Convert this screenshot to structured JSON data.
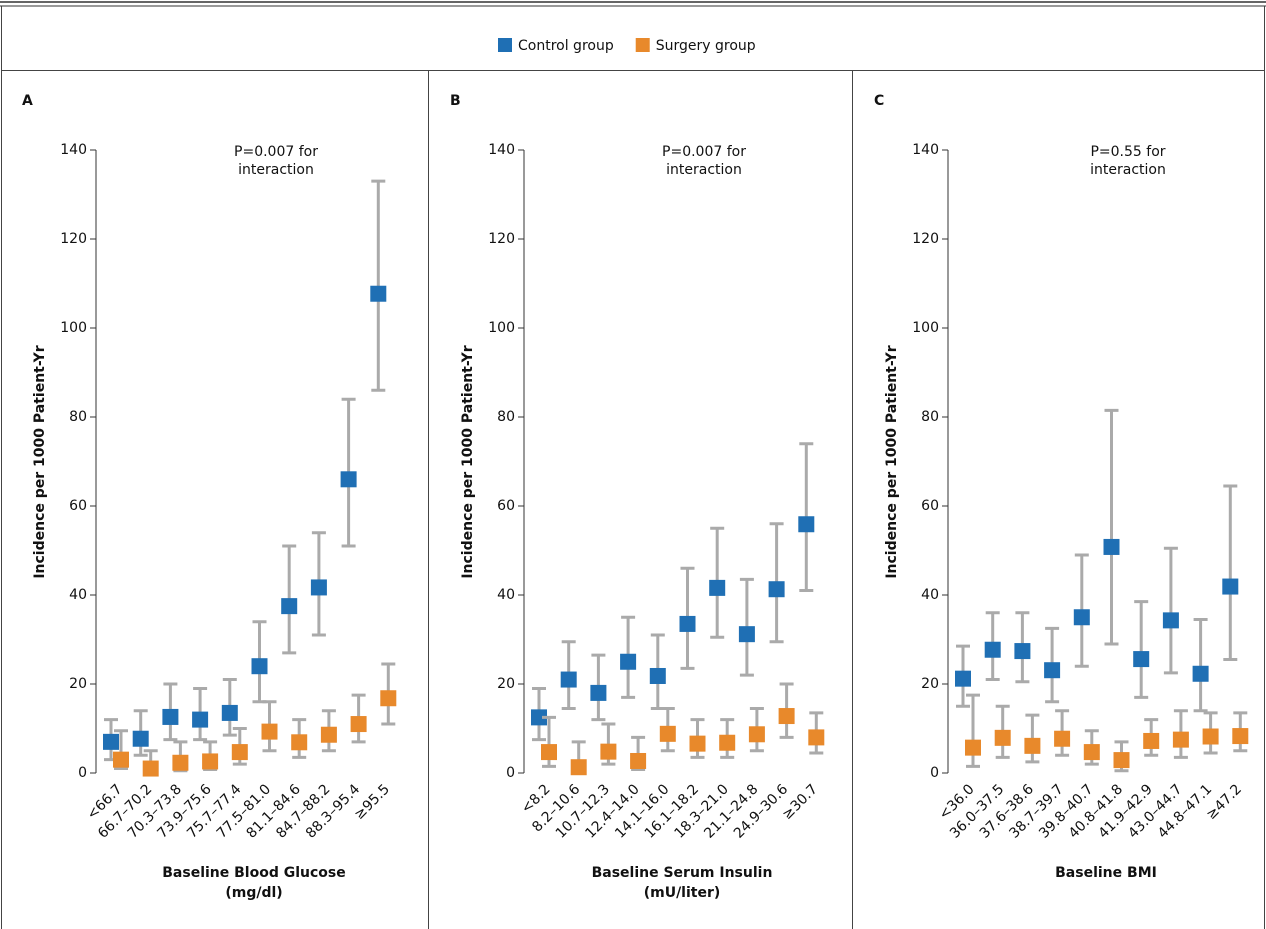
{
  "chart_data": [
    {
      "type": "scatter",
      "panel_label": "A",
      "annotation": [
        "P=0.007 for",
        "interaction"
      ],
      "ylabel": "Incidence per 1000 Patient-Yr",
      "xlabel": [
        "Baseline Blood Glucose",
        "(mg/dl)"
      ],
      "categories": [
        "<66.7",
        "66.7–70.2",
        "70.3–73.8",
        "73.9–75.6",
        "75.7–77.4",
        "77.5–81.0",
        "81.1–84.6",
        "84.7–88.2",
        "88.3–95.4",
        "≥95.5"
      ],
      "ylim": [
        0,
        140
      ],
      "yticks": [
        0,
        20,
        40,
        60,
        80,
        100,
        120,
        140
      ],
      "series": [
        {
          "name": "Control group",
          "color": "#1f6fb4",
          "values": [
            7,
            7.7,
            12.6,
            12,
            13.5,
            24,
            37.5,
            41.7,
            66,
            107.7
          ],
          "lower": [
            3,
            4,
            7.5,
            7.5,
            8.5,
            16,
            27,
            31,
            51,
            86
          ],
          "upper": [
            12,
            14,
            20,
            19,
            21,
            34,
            51,
            54,
            84,
            133
          ]
        },
        {
          "name": "Surgery group",
          "color": "#e8892b",
          "values": [
            3,
            1,
            2.3,
            2.6,
            4.7,
            9.3,
            6.9,
            8.6,
            11,
            16.8
          ],
          "lower": [
            1,
            0.3,
            0.5,
            0.8,
            2,
            5,
            3.5,
            5,
            7,
            11
          ],
          "upper": [
            9.5,
            5,
            7,
            7,
            10,
            16,
            12,
            14,
            17.5,
            24.5
          ]
        }
      ]
    },
    {
      "type": "scatter",
      "panel_label": "B",
      "annotation": [
        "P=0.007 for",
        "interaction"
      ],
      "ylabel": "Incidence per 1000 Patient-Yr",
      "xlabel": [
        "Baseline Serum Insulin",
        "(mU/liter)"
      ],
      "categories": [
        "<8.2",
        "8.2–10.6",
        "10.7–12.3",
        "12.4–14.0",
        "14.1–16.0",
        "16.1–18.2",
        "18.3–21.0",
        "21.1–24.8",
        "24.9–30.6",
        "≥30.7"
      ],
      "ylim": [
        0,
        140
      ],
      "yticks": [
        0,
        20,
        40,
        60,
        80,
        100,
        120,
        140
      ],
      "series": [
        {
          "color": "#1f6fb4",
          "values": [
            12.5,
            21,
            18,
            25,
            21.8,
            33.5,
            41.6,
            31.2,
            41.3,
            55.9
          ],
          "lower": [
            7.5,
            14.5,
            12,
            17,
            14.5,
            23.5,
            30.5,
            22,
            29.5,
            41
          ],
          "upper": [
            19,
            29.5,
            26.5,
            35,
            31,
            46,
            55,
            43.5,
            56,
            74
          ]
        },
        {
          "color": "#e8892b",
          "values": [
            4.7,
            1.3,
            4.8,
            2.7,
            8.8,
            6.6,
            6.8,
            8.7,
            12.8,
            8
          ],
          "lower": [
            1.5,
            0.2,
            2,
            0.8,
            5,
            3.5,
            3.5,
            5,
            8,
            4.5
          ],
          "upper": [
            12.5,
            7,
            11,
            8,
            14.5,
            12,
            12,
            14.5,
            20,
            13.5
          ]
        }
      ]
    },
    {
      "type": "scatter",
      "panel_label": "C",
      "annotation": [
        "P=0.55 for",
        "interaction"
      ],
      "ylabel": "Incidence per 1000 Patient-Yr",
      "xlabel": [
        "Baseline BMI"
      ],
      "categories": [
        "<36.0",
        "36.0–37.5",
        "37.6–38.6",
        "38.7–39.7",
        "39.8–40.7",
        "40.8–41.8",
        "41.9–42.9",
        "43.0–44.7",
        "44.8–47.1",
        "≥47.2"
      ],
      "ylim": [
        0,
        140
      ],
      "yticks": [
        0,
        20,
        40,
        60,
        80,
        100,
        120,
        140
      ],
      "series": [
        {
          "color": "#1f6fb4",
          "values": [
            21.2,
            27.7,
            27.4,
            23.1,
            35,
            50.8,
            25.6,
            34.3,
            22.3,
            41.9
          ],
          "lower": [
            15,
            21,
            20.5,
            16,
            24,
            29,
            17,
            22.5,
            14,
            25.5
          ],
          "upper": [
            28.5,
            36,
            36,
            32.5,
            49,
            81.5,
            38.5,
            50.5,
            34.5,
            64.5
          ]
        },
        {
          "color": "#e8892b",
          "values": [
            5.7,
            7.9,
            6.1,
            7.7,
            4.7,
            2.9,
            7.2,
            7.5,
            8.2,
            8.3
          ],
          "lower": [
            1.5,
            3.5,
            2.5,
            4,
            2,
            0.5,
            4,
            3.5,
            4.5,
            5
          ],
          "upper": [
            17.5,
            15,
            13,
            14,
            9.5,
            7,
            12,
            14,
            13.5,
            13.5
          ]
        }
      ]
    }
  ]
}
